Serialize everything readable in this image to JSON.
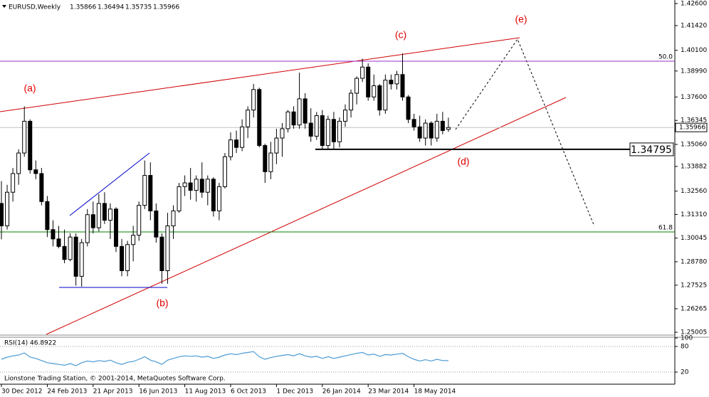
{
  "chart_data": {
    "type": "candlestick",
    "symbol": "EURUSD,Weekly",
    "copyright": "Lionstone Trading Station, © 2001-2014, MetaQuotes Software Corp.",
    "categories": [
      "30 Dec 2012",
      null,
      null,
      null,
      null,
      null,
      null,
      null,
      "24 Feb 2013",
      null,
      null,
      null,
      null,
      null,
      null,
      null,
      "21 Apr 2013",
      null,
      null,
      null,
      null,
      null,
      null,
      null,
      "16 Jun 2013",
      null,
      null,
      null,
      null,
      null,
      null,
      null,
      "11 Aug 2013",
      null,
      null,
      null,
      null,
      null,
      null,
      null,
      "6 Oct 2013",
      null,
      null,
      null,
      null,
      null,
      null,
      null,
      "1 Dec 2013",
      null,
      null,
      null,
      null,
      null,
      null,
      null,
      "26 Jan 2014",
      null,
      null,
      null,
      null,
      null,
      null,
      null,
      "23 Mar 2014",
      null,
      null,
      null,
      null,
      null,
      null,
      null,
      "18 May 2014",
      null,
      null,
      null,
      null,
      null,
      null
    ],
    "ohlc": [
      [
        1.319,
        1.331,
        1.2998,
        1.307
      ],
      [
        1.307,
        1.329,
        1.305,
        1.325
      ],
      [
        1.325,
        1.338,
        1.32,
        1.335
      ],
      [
        1.335,
        1.348,
        1.329,
        1.346
      ],
      [
        1.346,
        1.371,
        1.344,
        1.363
      ],
      [
        1.363,
        1.364,
        1.335,
        1.337
      ],
      [
        1.337,
        1.342,
        1.332,
        1.335
      ],
      [
        1.335,
        1.338,
        1.318,
        1.32
      ],
      [
        1.32,
        1.323,
        1.301,
        1.305
      ],
      [
        1.305,
        1.31,
        1.296,
        1.3
      ],
      [
        1.3,
        1.307,
        1.295,
        1.296
      ],
      [
        1.296,
        1.305,
        1.287,
        1.289
      ],
      [
        1.289,
        1.303,
        1.288,
        1.301
      ],
      [
        1.301,
        1.303,
        1.275,
        1.28
      ],
      [
        1.28,
        1.3,
        1.2745,
        1.298
      ],
      [
        1.298,
        1.316,
        1.296,
        1.313
      ],
      [
        1.313,
        1.32,
        1.303,
        1.306
      ],
      [
        1.306,
        1.324,
        1.304,
        1.319
      ],
      [
        1.319,
        1.325,
        1.308,
        1.31
      ],
      [
        1.31,
        1.319,
        1.3,
        1.316
      ],
      [
        1.316,
        1.317,
        1.293,
        1.296
      ],
      [
        1.296,
        1.3,
        1.28,
        1.283
      ],
      [
        1.283,
        1.299,
        1.28,
        1.297
      ],
      [
        1.297,
        1.307,
        1.288,
        1.302
      ],
      [
        1.302,
        1.32,
        1.299,
        1.318
      ],
      [
        1.318,
        1.342,
        1.316,
        1.334
      ],
      [
        1.334,
        1.341,
        1.31,
        1.315
      ],
      [
        1.315,
        1.319,
        1.298,
        1.301
      ],
      [
        1.301,
        1.303,
        1.276,
        1.283
      ],
      [
        1.283,
        1.314,
        1.276,
        1.307
      ],
      [
        1.307,
        1.318,
        1.3,
        1.315
      ],
      [
        1.315,
        1.33,
        1.314,
        1.328
      ],
      [
        1.328,
        1.334,
        1.323,
        1.33
      ],
      [
        1.33,
        1.338,
        1.321,
        1.326
      ],
      [
        1.326,
        1.334,
        1.32,
        1.332
      ],
      [
        1.332,
        1.341,
        1.322,
        1.325
      ],
      [
        1.325,
        1.334,
        1.318,
        1.332
      ],
      [
        1.332,
        1.333,
        1.312,
        1.315
      ],
      [
        1.315,
        1.33,
        1.31,
        1.328
      ],
      [
        1.328,
        1.346,
        1.327,
        1.344
      ],
      [
        1.344,
        1.357,
        1.342,
        1.353
      ],
      [
        1.353,
        1.358,
        1.346,
        1.349
      ],
      [
        1.349,
        1.364,
        1.347,
        1.36
      ],
      [
        1.36,
        1.371,
        1.354,
        1.369
      ],
      [
        1.369,
        1.383,
        1.365,
        1.38
      ],
      [
        1.38,
        1.381,
        1.349,
        1.35
      ],
      [
        1.35,
        1.351,
        1.33,
        1.336
      ],
      [
        1.336,
        1.352,
        1.332,
        1.346
      ],
      [
        1.346,
        1.359,
        1.34,
        1.354
      ],
      [
        1.354,
        1.362,
        1.344,
        1.359
      ],
      [
        1.359,
        1.369,
        1.357,
        1.368
      ],
      [
        1.368,
        1.371,
        1.359,
        1.361
      ],
      [
        1.361,
        1.389,
        1.359,
        1.375
      ],
      [
        1.375,
        1.378,
        1.359,
        1.362
      ],
      [
        1.362,
        1.37,
        1.352,
        1.355
      ],
      [
        1.355,
        1.368,
        1.353,
        1.366
      ],
      [
        1.366,
        1.369,
        1.348,
        1.35
      ],
      [
        1.35,
        1.366,
        1.3477,
        1.364
      ],
      [
        1.364,
        1.368,
        1.348,
        1.352
      ],
      [
        1.352,
        1.365,
        1.349,
        1.363
      ],
      [
        1.363,
        1.372,
        1.36,
        1.369
      ],
      [
        1.369,
        1.38,
        1.365,
        1.378
      ],
      [
        1.378,
        1.387,
        1.372,
        1.386
      ],
      [
        1.386,
        1.3965,
        1.384,
        1.392
      ],
      [
        1.392,
        1.394,
        1.374,
        1.376
      ],
      [
        1.376,
        1.388,
        1.374,
        1.382
      ],
      [
        1.382,
        1.383,
        1.366,
        1.369
      ],
      [
        1.369,
        1.388,
        1.367,
        1.385
      ],
      [
        1.385,
        1.388,
        1.38,
        1.383
      ],
      [
        1.383,
        1.39,
        1.38,
        1.388
      ],
      [
        1.388,
        1.3993,
        1.374,
        1.376
      ],
      [
        1.376,
        1.377,
        1.362,
        1.364
      ],
      [
        1.364,
        1.367,
        1.358,
        1.36
      ],
      [
        1.36,
        1.366,
        1.352,
        1.354
      ],
      [
        1.354,
        1.364,
        1.35,
        1.362
      ],
      [
        1.362,
        1.363,
        1.35,
        1.354
      ],
      [
        1.354,
        1.367,
        1.352,
        1.363
      ],
      [
        1.363,
        1.368,
        1.356,
        1.358
      ],
      [
        1.35866,
        1.36494,
        1.35735,
        1.35966
      ]
    ],
    "ylim": [
      1.24891,
      1.4279
    ],
    "yticks": [
      {
        "value": 1.426,
        "label": "1.42600"
      },
      {
        "value": 1.4142,
        "label": "1.41420"
      },
      {
        "value": 1.401,
        "label": "1.40100"
      },
      {
        "value": 1.3899,
        "label": "1.38990"
      },
      {
        "value": 1.376,
        "label": "1.37600"
      },
      1.36345,
      {
        "value": 1.3506,
        "label": "1.35060"
      },
      1.33882,
      {
        "value": 1.3256,
        "label": "1.32560"
      },
      {
        "value": 1.3131,
        "label": "1.31310"
      },
      1.30045,
      {
        "value": 1.2878,
        "label": "1.28780"
      },
      1.27525,
      1.26265,
      1.25005
    ],
    "levels": [
      {
        "label": "50.0",
        "value": 1.39515,
        "color": "#9932cc"
      },
      {
        "label": "61.8",
        "value": 1.30376,
        "color": "#008000"
      }
    ],
    "support": 1.34795,
    "annotations": [
      "(a)",
      "(b)",
      "(c)",
      "(d)",
      "(e)"
    ],
    "rsi_label": "RSI(14)",
    "rsi": [
      50,
      55,
      58,
      60,
      65,
      55,
      52,
      47,
      42,
      40,
      38,
      36,
      40,
      35,
      42,
      46,
      44,
      47,
      45,
      48,
      42,
      38,
      43,
      45,
      50,
      56,
      48,
      44,
      38,
      48,
      52,
      56,
      58,
      57,
      58,
      55,
      57,
      52,
      55,
      60,
      63,
      61,
      64,
      66,
      68,
      56,
      50,
      54,
      57,
      59,
      61,
      58,
      63,
      58,
      55,
      57,
      52,
      56,
      52,
      55,
      58,
      61,
      64,
      66,
      60,
      62,
      57,
      61,
      60,
      62,
      64,
      56,
      50,
      46,
      49,
      46,
      50,
      47,
      46.8922
    ],
    "rsi_ylim": [
      0,
      100
    ],
    "rsi_ticks": [
      100,
      80,
      20
    ],
    "rsi_color": "#4a9ad4"
  }
}
